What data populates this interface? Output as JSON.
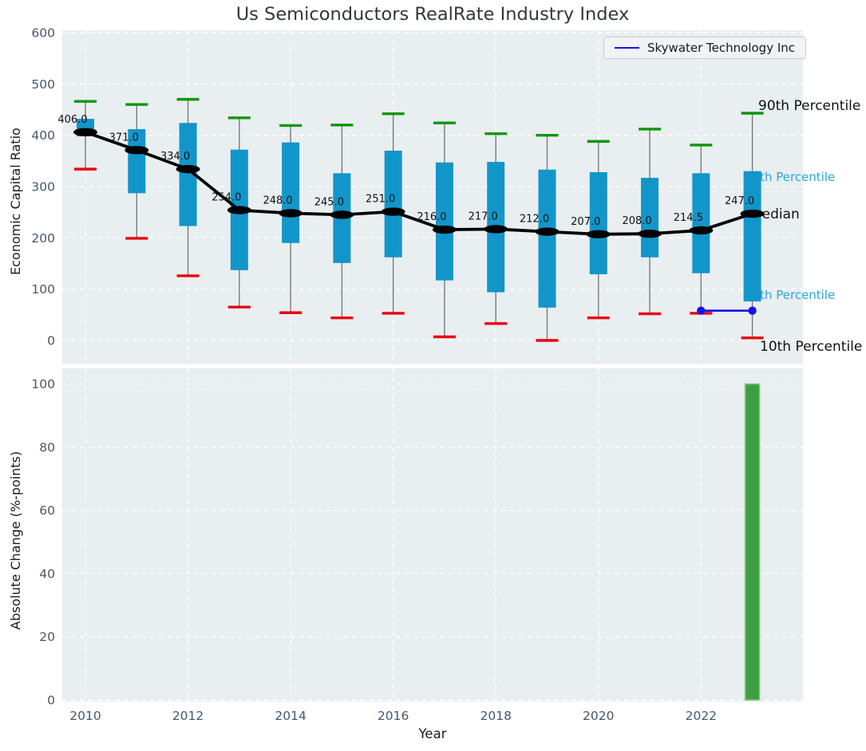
{
  "title": "Us Semiconductors RealRate Industry Index",
  "legend": {
    "label": "Skywater Technology Inc"
  },
  "annotations": {
    "p90": "90th Percentile",
    "p75": "75th Percentile",
    "median": "Median",
    "p25": "25th Percentile",
    "p10": "10th Percentile"
  },
  "axis": {
    "top_ylabel": "Economic Capital Ratio",
    "bottom_ylabel": "Absolute Change (%-points)",
    "xlabel": "Year"
  },
  "colors": {
    "box_fill": "#1296c9",
    "cap_high": "#0b960b",
    "cap_low": "#e8000e",
    "whisker": "#7a7a7a",
    "median_line": "#000000",
    "company_line": "#1414e6",
    "bar_fill": "#3d9e42",
    "bar_edge": "#7fc97f",
    "plot_bg": "#e9eef0",
    "grid": "#ffffff",
    "tick_label": "#45586a",
    "percentile_label_blue": "#2aa7d9",
    "annotation_black": "#111111"
  },
  "chart_data": [
    {
      "type": "boxplot",
      "title": "Us Semiconductors RealRate Industry Index",
      "ylabel": "Economic Capital Ratio",
      "xlabel": "Year",
      "ylim": [
        0,
        600
      ],
      "yticks": [
        0,
        100,
        200,
        300,
        400,
        500,
        600
      ],
      "xticks": [
        2010,
        2012,
        2014,
        2016,
        2018,
        2020,
        2022
      ],
      "grid": true,
      "legend_position": "upper right",
      "years": [
        2010,
        2011,
        2012,
        2013,
        2014,
        2015,
        2016,
        2017,
        2018,
        2019,
        2020,
        2021,
        2022,
        2023
      ],
      "p90": [
        466,
        460,
        470,
        434,
        419,
        420,
        442,
        424,
        403,
        400,
        388,
        412,
        381,
        443
      ],
      "q3": [
        432,
        412,
        424,
        372,
        386,
        326,
        370,
        347,
        348,
        333,
        328,
        317,
        326,
        330
      ],
      "median": [
        406,
        371,
        334,
        254,
        248,
        245,
        251,
        216,
        217,
        212,
        207,
        208,
        214.5,
        247
      ],
      "q1": [
        398,
        287,
        223,
        137,
        190,
        151,
        162,
        117,
        94,
        64,
        129,
        162,
        131,
        76
      ],
      "p10": [
        334,
        199,
        126,
        65,
        54,
        44,
        53,
        7,
        33,
        0,
        44,
        52,
        53,
        5
      ],
      "median_labels": [
        "406.0",
        "371.0",
        "334.0",
        "254.0",
        "248.0",
        "245.0",
        "251.0",
        "216.0",
        "217.0",
        "212.0",
        "207.0",
        "208.0",
        "214.5",
        "247.0"
      ],
      "series": [
        {
          "name": "Skywater Technology Inc",
          "x": [
            2022,
            2023
          ],
          "y": [
            58,
            58
          ]
        }
      ]
    },
    {
      "type": "bar",
      "ylabel": "Absolute Change (%-points)",
      "xlabel": "Year",
      "ylim": [
        0,
        100
      ],
      "yticks": [
        0,
        20,
        40,
        60,
        80,
        100
      ],
      "xticks": [
        2010,
        2012,
        2014,
        2016,
        2018,
        2020,
        2022
      ],
      "grid": true,
      "categories": [
        2010,
        2011,
        2012,
        2013,
        2014,
        2015,
        2016,
        2017,
        2018,
        2019,
        2020,
        2021,
        2022,
        2023
      ],
      "values": [
        0,
        0,
        0,
        0,
        0,
        0,
        0,
        0,
        0,
        0,
        0,
        0,
        0,
        100
      ]
    }
  ]
}
